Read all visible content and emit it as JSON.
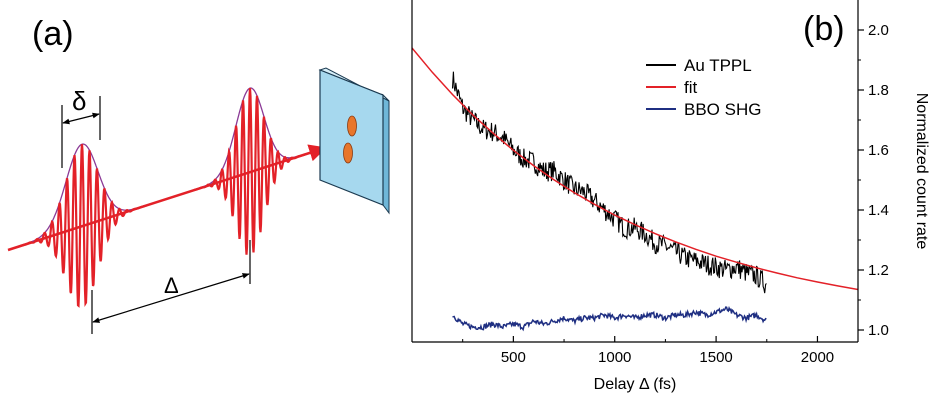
{
  "panel_a": {
    "label": "(a)",
    "delta_symbol": "δ",
    "Delta_symbol": "Δ",
    "colors": {
      "pulse": "#e32128",
      "envelope": "#8b3a96",
      "slab": "#a6d8ee",
      "spot": "#e8762b"
    }
  },
  "chart_data": {
    "type": "line",
    "panel_label": "(b)",
    "title": "",
    "xlabel": "Delay Δ (fs)",
    "ylabel": "Normalized count rate",
    "xlim": [
      0,
      2200
    ],
    "ylim": [
      0.96,
      2.1
    ],
    "xticks": [
      500,
      1000,
      1500,
      2000
    ],
    "yticks": [
      1.0,
      1.2,
      1.4,
      1.6,
      1.8,
      2.0
    ],
    "y_axis_side": "right",
    "grid": false,
    "legend_placement": "top-right",
    "series": [
      {
        "name": "Au TPPL",
        "color": "#000000",
        "x": [
          200,
          250,
          300,
          350,
          400,
          450,
          500,
          550,
          600,
          650,
          700,
          750,
          800,
          850,
          900,
          950,
          1000,
          1050,
          1100,
          1150,
          1200,
          1250,
          1300,
          1350,
          1400,
          1450,
          1500,
          1550,
          1600,
          1650,
          1700,
          1750
        ],
        "y": [
          1.84,
          1.74,
          1.7,
          1.67,
          1.66,
          1.64,
          1.6,
          1.57,
          1.56,
          1.53,
          1.53,
          1.5,
          1.47,
          1.46,
          1.43,
          1.4,
          1.37,
          1.34,
          1.34,
          1.32,
          1.29,
          1.28,
          1.26,
          1.24,
          1.23,
          1.22,
          1.21,
          1.2,
          1.21,
          1.19,
          1.18,
          1.15
        ]
      },
      {
        "name": "fit",
        "color": "#e32128",
        "x": [
          0,
          100,
          200,
          300,
          400,
          500,
          600,
          700,
          800,
          900,
          1000,
          1100,
          1200,
          1300,
          1400,
          1500,
          1600,
          1700,
          1800,
          1900,
          2000,
          2100,
          2200
        ],
        "y": [
          1.94,
          1.859,
          1.785,
          1.717,
          1.656,
          1.599,
          1.548,
          1.501,
          1.458,
          1.419,
          1.383,
          1.351,
          1.321,
          1.294,
          1.269,
          1.246,
          1.226,
          1.207,
          1.19,
          1.174,
          1.16,
          1.147,
          1.135
        ]
      },
      {
        "name": "BBO SHG",
        "color": "#1f2f82",
        "x": [
          200,
          250,
          300,
          350,
          400,
          450,
          500,
          550,
          600,
          650,
          700,
          750,
          800,
          850,
          900,
          950,
          1000,
          1050,
          1100,
          1150,
          1200,
          1250,
          1300,
          1350,
          1400,
          1450,
          1500,
          1550,
          1600,
          1650,
          1700,
          1750
        ],
        "y": [
          1.05,
          1.02,
          1.01,
          1.01,
          1.02,
          1.01,
          1.02,
          1.01,
          1.03,
          1.02,
          1.03,
          1.04,
          1.03,
          1.04,
          1.04,
          1.05,
          1.04,
          1.05,
          1.04,
          1.05,
          1.05,
          1.04,
          1.05,
          1.05,
          1.06,
          1.05,
          1.06,
          1.07,
          1.05,
          1.04,
          1.05,
          1.03
        ]
      }
    ]
  }
}
